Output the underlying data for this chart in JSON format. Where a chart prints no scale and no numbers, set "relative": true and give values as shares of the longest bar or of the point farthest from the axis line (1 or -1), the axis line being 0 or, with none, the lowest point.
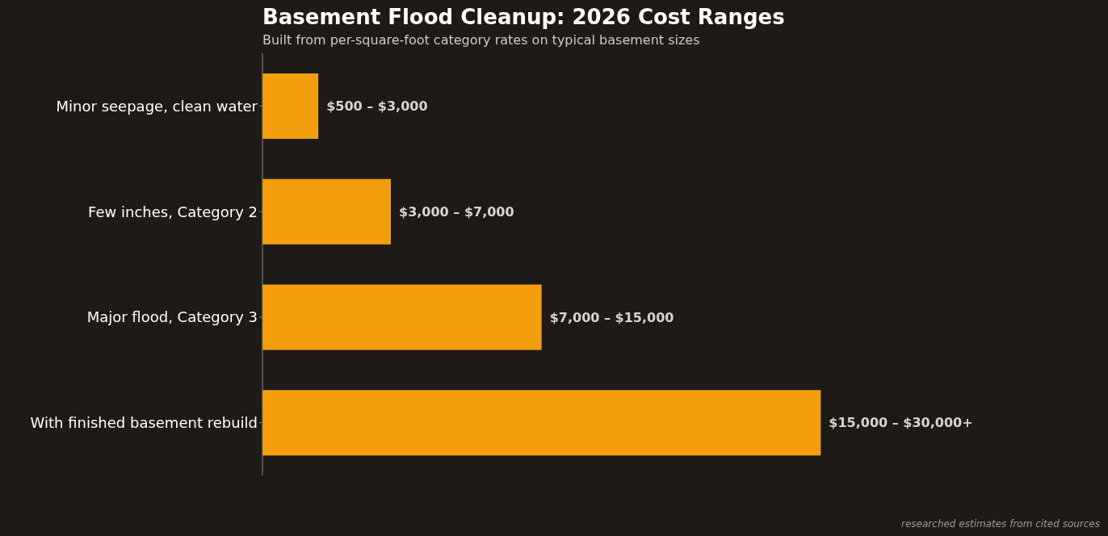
{
  "chart_data": {
    "type": "bar",
    "orientation": "horizontal",
    "relative": true,
    "title": "Basement Flood Cleanup: 2026 Cost Ranges",
    "subtitle": "Built from per-square-foot category rates on typical basement sizes",
    "categories": [
      "Minor seepage, clean water",
      "Few inches, Category 2",
      "Major flood, Category 3",
      "With finished basement rebuild"
    ],
    "values": [
      0.1,
      0.23,
      0.5,
      1
    ],
    "color": "#f39f0d",
    "annotations": [
      "$500 – $3,000",
      "$3,000 – $7,000",
      "$7,000 – $15,000",
      "$15,000 – $30,000+",
      "researched estimates from cited sources"
    ]
  }
}
